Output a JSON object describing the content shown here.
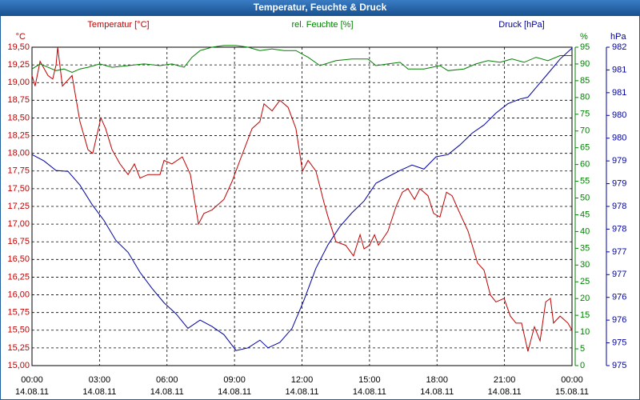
{
  "chart_data": {
    "type": "line",
    "title": "Temperatur, Feuchte & Druck",
    "ylabel": "°C",
    "y2label": "%",
    "y3label": "hPa",
    "xlim": [
      0,
      24
    ],
    "xticks": [
      {
        "value": 0,
        "label": "00:00"
      },
      {
        "value": 3,
        "label": "03:00"
      },
      {
        "value": 6,
        "label": "06:00"
      },
      {
        "value": 9,
        "label": "09:00"
      },
      {
        "value": 12,
        "label": "12:00"
      },
      {
        "value": 15,
        "label": "15:00"
      },
      {
        "value": 18,
        "label": "18:00"
      },
      {
        "value": 21,
        "label": "21:00"
      },
      {
        "value": 24,
        "label": "00:00"
      }
    ],
    "xtick_dates": [
      "14.08.11",
      "14.08.11",
      "14.08.11",
      "14.08.11",
      "14.08.11",
      "14.08.11",
      "14.08.11",
      "14.08.11",
      "15.08.11"
    ],
    "ylim": [
      15,
      19.5
    ],
    "yticks": [
      {
        "value": 15,
        "label": "15,00"
      },
      {
        "value": 15.25,
        "label": "15,25"
      },
      {
        "value": 15.5,
        "label": "15,50"
      },
      {
        "value": 15.75,
        "label": "15,75"
      },
      {
        "value": 16,
        "label": "16,00"
      },
      {
        "value": 16.25,
        "label": "16,25"
      },
      {
        "value": 16.5,
        "label": "16,50"
      },
      {
        "value": 16.75,
        "label": "16,75"
      },
      {
        "value": 17,
        "label": "17,00"
      },
      {
        "value": 17.25,
        "label": "17,25"
      },
      {
        "value": 17.5,
        "label": "17,50"
      },
      {
        "value": 17.75,
        "label": "17,75"
      },
      {
        "value": 18,
        "label": "18,00"
      },
      {
        "value": 18.25,
        "label": "18,25"
      },
      {
        "value": 18.5,
        "label": "18,50"
      },
      {
        "value": 18.75,
        "label": "18,75"
      },
      {
        "value": 19,
        "label": "19,00"
      },
      {
        "value": 19.25,
        "label": "19,25"
      },
      {
        "value": 19.5,
        "label": "19,50"
      }
    ],
    "y2lim": [
      0,
      95
    ],
    "y2ticks": [
      0,
      5,
      10,
      15,
      20,
      25,
      30,
      35,
      40,
      45,
      50,
      55,
      60,
      65,
      70,
      75,
      80,
      85,
      90,
      95
    ],
    "y3lim": [
      974.75,
      981.75
    ],
    "y3ticks": [
      {
        "value": 974.75,
        "label": "975"
      },
      {
        "value": 975.25,
        "label": "975"
      },
      {
        "value": 975.75,
        "label": "976"
      },
      {
        "value": 976.25,
        "label": "976"
      },
      {
        "value": 976.75,
        "label": "977"
      },
      {
        "value": 977.25,
        "label": "977"
      },
      {
        "value": 977.75,
        "label": "978"
      },
      {
        "value": 978.25,
        "label": "978"
      },
      {
        "value": 978.75,
        "label": "979"
      },
      {
        "value": 979.25,
        "label": "979"
      },
      {
        "value": 979.75,
        "label": "980"
      },
      {
        "value": 980.25,
        "label": "980"
      },
      {
        "value": 980.75,
        "label": "981"
      },
      {
        "value": 981.25,
        "label": "981"
      },
      {
        "value": 981.75,
        "label": "982"
      }
    ],
    "grid": true,
    "series": [
      {
        "name": "Temperatur [°C]",
        "color": "#c00000",
        "axis": "y",
        "x": [
          0,
          0.14,
          0.36,
          0.71,
          0.92,
          1.07,
          1.14,
          1.35,
          1.78,
          2.13,
          2.49,
          2.7,
          3.06,
          3.27,
          3.56,
          3.91,
          4.27,
          4.55,
          4.8,
          5.16,
          5.69,
          5.87,
          6.22,
          6.68,
          7.04,
          7.4,
          7.64,
          8.0,
          8.53,
          8.89,
          9.24,
          9.78,
          10.13,
          10.31,
          10.67,
          11.02,
          11.38,
          11.73,
          12.02,
          12.27,
          12.62,
          12.98,
          13.16,
          13.51,
          13.94,
          14.29,
          14.58,
          14.76,
          15.0,
          15.22,
          15.4,
          15.82,
          16.18,
          16.46,
          16.71,
          17.0,
          17.24,
          17.6,
          17.85,
          18.13,
          18.42,
          18.67,
          19.02,
          19.38,
          19.8,
          20.09,
          20.37,
          20.62,
          20.98,
          21.26,
          21.51,
          21.76,
          22.04,
          22.33,
          22.58,
          22.83,
          23.04,
          23.18,
          23.47,
          23.82,
          24.0
        ],
        "values": [
          19.1,
          18.95,
          19.3,
          19.1,
          19.05,
          19.25,
          19.5,
          18.95,
          19.1,
          18.45,
          18.05,
          18.0,
          18.5,
          18.35,
          18.05,
          17.85,
          17.7,
          17.85,
          17.65,
          17.7,
          17.7,
          17.9,
          17.85,
          17.95,
          17.7,
          17.0,
          17.15,
          17.2,
          17.35,
          17.6,
          17.9,
          18.35,
          18.45,
          18.7,
          18.6,
          18.75,
          18.65,
          18.35,
          17.75,
          17.9,
          17.75,
          17.3,
          17.1,
          16.75,
          16.7,
          16.55,
          16.85,
          16.65,
          16.7,
          16.85,
          16.7,
          16.9,
          17.25,
          17.45,
          17.5,
          17.35,
          17.5,
          17.4,
          17.15,
          17.1,
          17.45,
          17.4,
          17.15,
          16.9,
          16.45,
          16.35,
          16.0,
          15.9,
          15.95,
          15.7,
          15.6,
          15.6,
          15.2,
          15.55,
          15.35,
          15.9,
          15.95,
          15.6,
          15.7,
          15.6,
          15.5
        ]
      },
      {
        "name": "rel. Feuchte [%]",
        "color": "#008000",
        "axis": "y2",
        "x": [
          0,
          0.36,
          0.71,
          1.07,
          1.42,
          1.78,
          2.13,
          2.49,
          3.02,
          3.56,
          4.27,
          4.98,
          5.69,
          6.22,
          6.76,
          7.11,
          7.47,
          8.0,
          8.53,
          9.07,
          9.6,
          10.13,
          10.67,
          11.2,
          11.73,
          12.27,
          12.8,
          13.51,
          14.22,
          14.93,
          15.29,
          15.82,
          16.36,
          16.71,
          17.42,
          18.13,
          18.49,
          19.2,
          19.73,
          20.27,
          20.8,
          21.33,
          21.87,
          22.4,
          22.93,
          23.47,
          24
        ],
        "values": [
          88.5,
          90,
          89,
          88,
          88.5,
          87.5,
          88.5,
          89,
          90,
          89,
          89.5,
          90,
          89.5,
          90,
          89,
          92,
          94,
          95,
          95.5,
          95.5,
          95,
          94,
          94.5,
          94,
          94,
          92,
          89.5,
          91,
          91.5,
          91.5,
          89.5,
          90,
          90.5,
          88.5,
          88.5,
          89.5,
          88,
          88.5,
          90,
          91,
          90.5,
          91.5,
          90.5,
          92,
          91,
          92.5,
          92.5
        ]
      },
      {
        "name": "Druck [hPa]",
        "color": "#0000a0",
        "axis": "y3",
        "x": [
          0,
          0.53,
          1.07,
          1.6,
          2.13,
          2.67,
          3.2,
          3.73,
          4.27,
          4.8,
          5.33,
          5.87,
          6.4,
          6.93,
          7.47,
          8.0,
          8.53,
          9.07,
          9.6,
          10.13,
          10.49,
          11.02,
          11.56,
          12.09,
          12.62,
          13.16,
          13.69,
          14.22,
          14.76,
          15.29,
          15.82,
          16.36,
          16.89,
          17.42,
          17.96,
          18.49,
          19.02,
          19.56,
          20.09,
          20.62,
          21.16,
          21.69,
          22.04,
          22.4,
          22.93,
          23.47,
          24
        ],
        "values": [
          979.39,
          979.25,
          979.04,
          979.02,
          978.72,
          978.29,
          977.94,
          977.5,
          977.24,
          976.8,
          976.45,
          976.13,
          975.89,
          975.57,
          975.75,
          975.61,
          975.43,
          975.08,
          975.14,
          975.31,
          975.14,
          975.26,
          975.57,
          976.19,
          976.89,
          977.41,
          977.81,
          978.11,
          978.37,
          978.76,
          978.9,
          979.04,
          979.16,
          979.07,
          979.34,
          979.39,
          979.6,
          979.86,
          980.04,
          980.3,
          980.51,
          980.61,
          980.65,
          980.86,
          981.17,
          981.49,
          981.73
        ]
      }
    ]
  }
}
